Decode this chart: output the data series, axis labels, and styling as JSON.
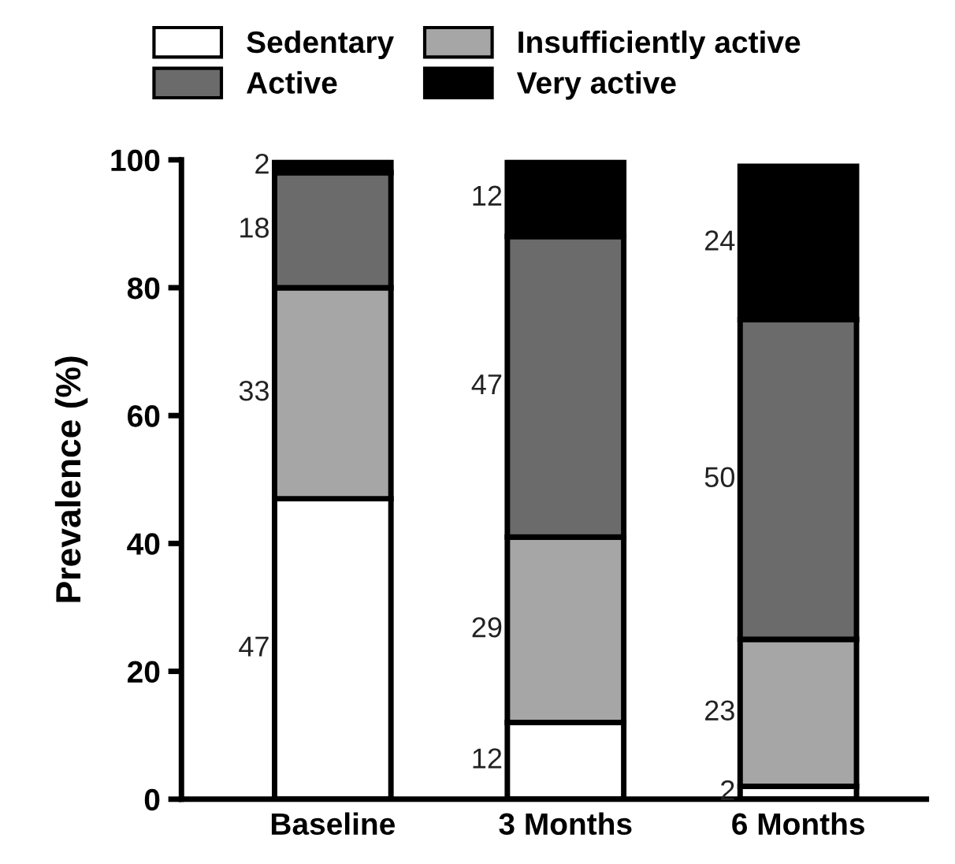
{
  "chart_data": {
    "type": "bar",
    "stacked": true,
    "ylabel": "Prevalence (%)",
    "categories": [
      "Baseline",
      "3 Months",
      "6 Months"
    ],
    "series": [
      {
        "name": "Sedentary",
        "color": "#ffffff",
        "values": [
          47,
          12,
          2
        ]
      },
      {
        "name": "Insufficiently active",
        "color": "#a6a6a6",
        "values": [
          33,
          29,
          23
        ]
      },
      {
        "name": "Active",
        "color": "#6b6b6b",
        "values": [
          18,
          47,
          50
        ]
      },
      {
        "name": "Very active",
        "color": "#000000",
        "values": [
          2,
          12,
          24
        ]
      }
    ],
    "ylim": [
      0,
      100
    ],
    "yticks": [
      0,
      20,
      40,
      60,
      80,
      100
    ],
    "grid": false,
    "legend": "top",
    "data_labels": true
  }
}
